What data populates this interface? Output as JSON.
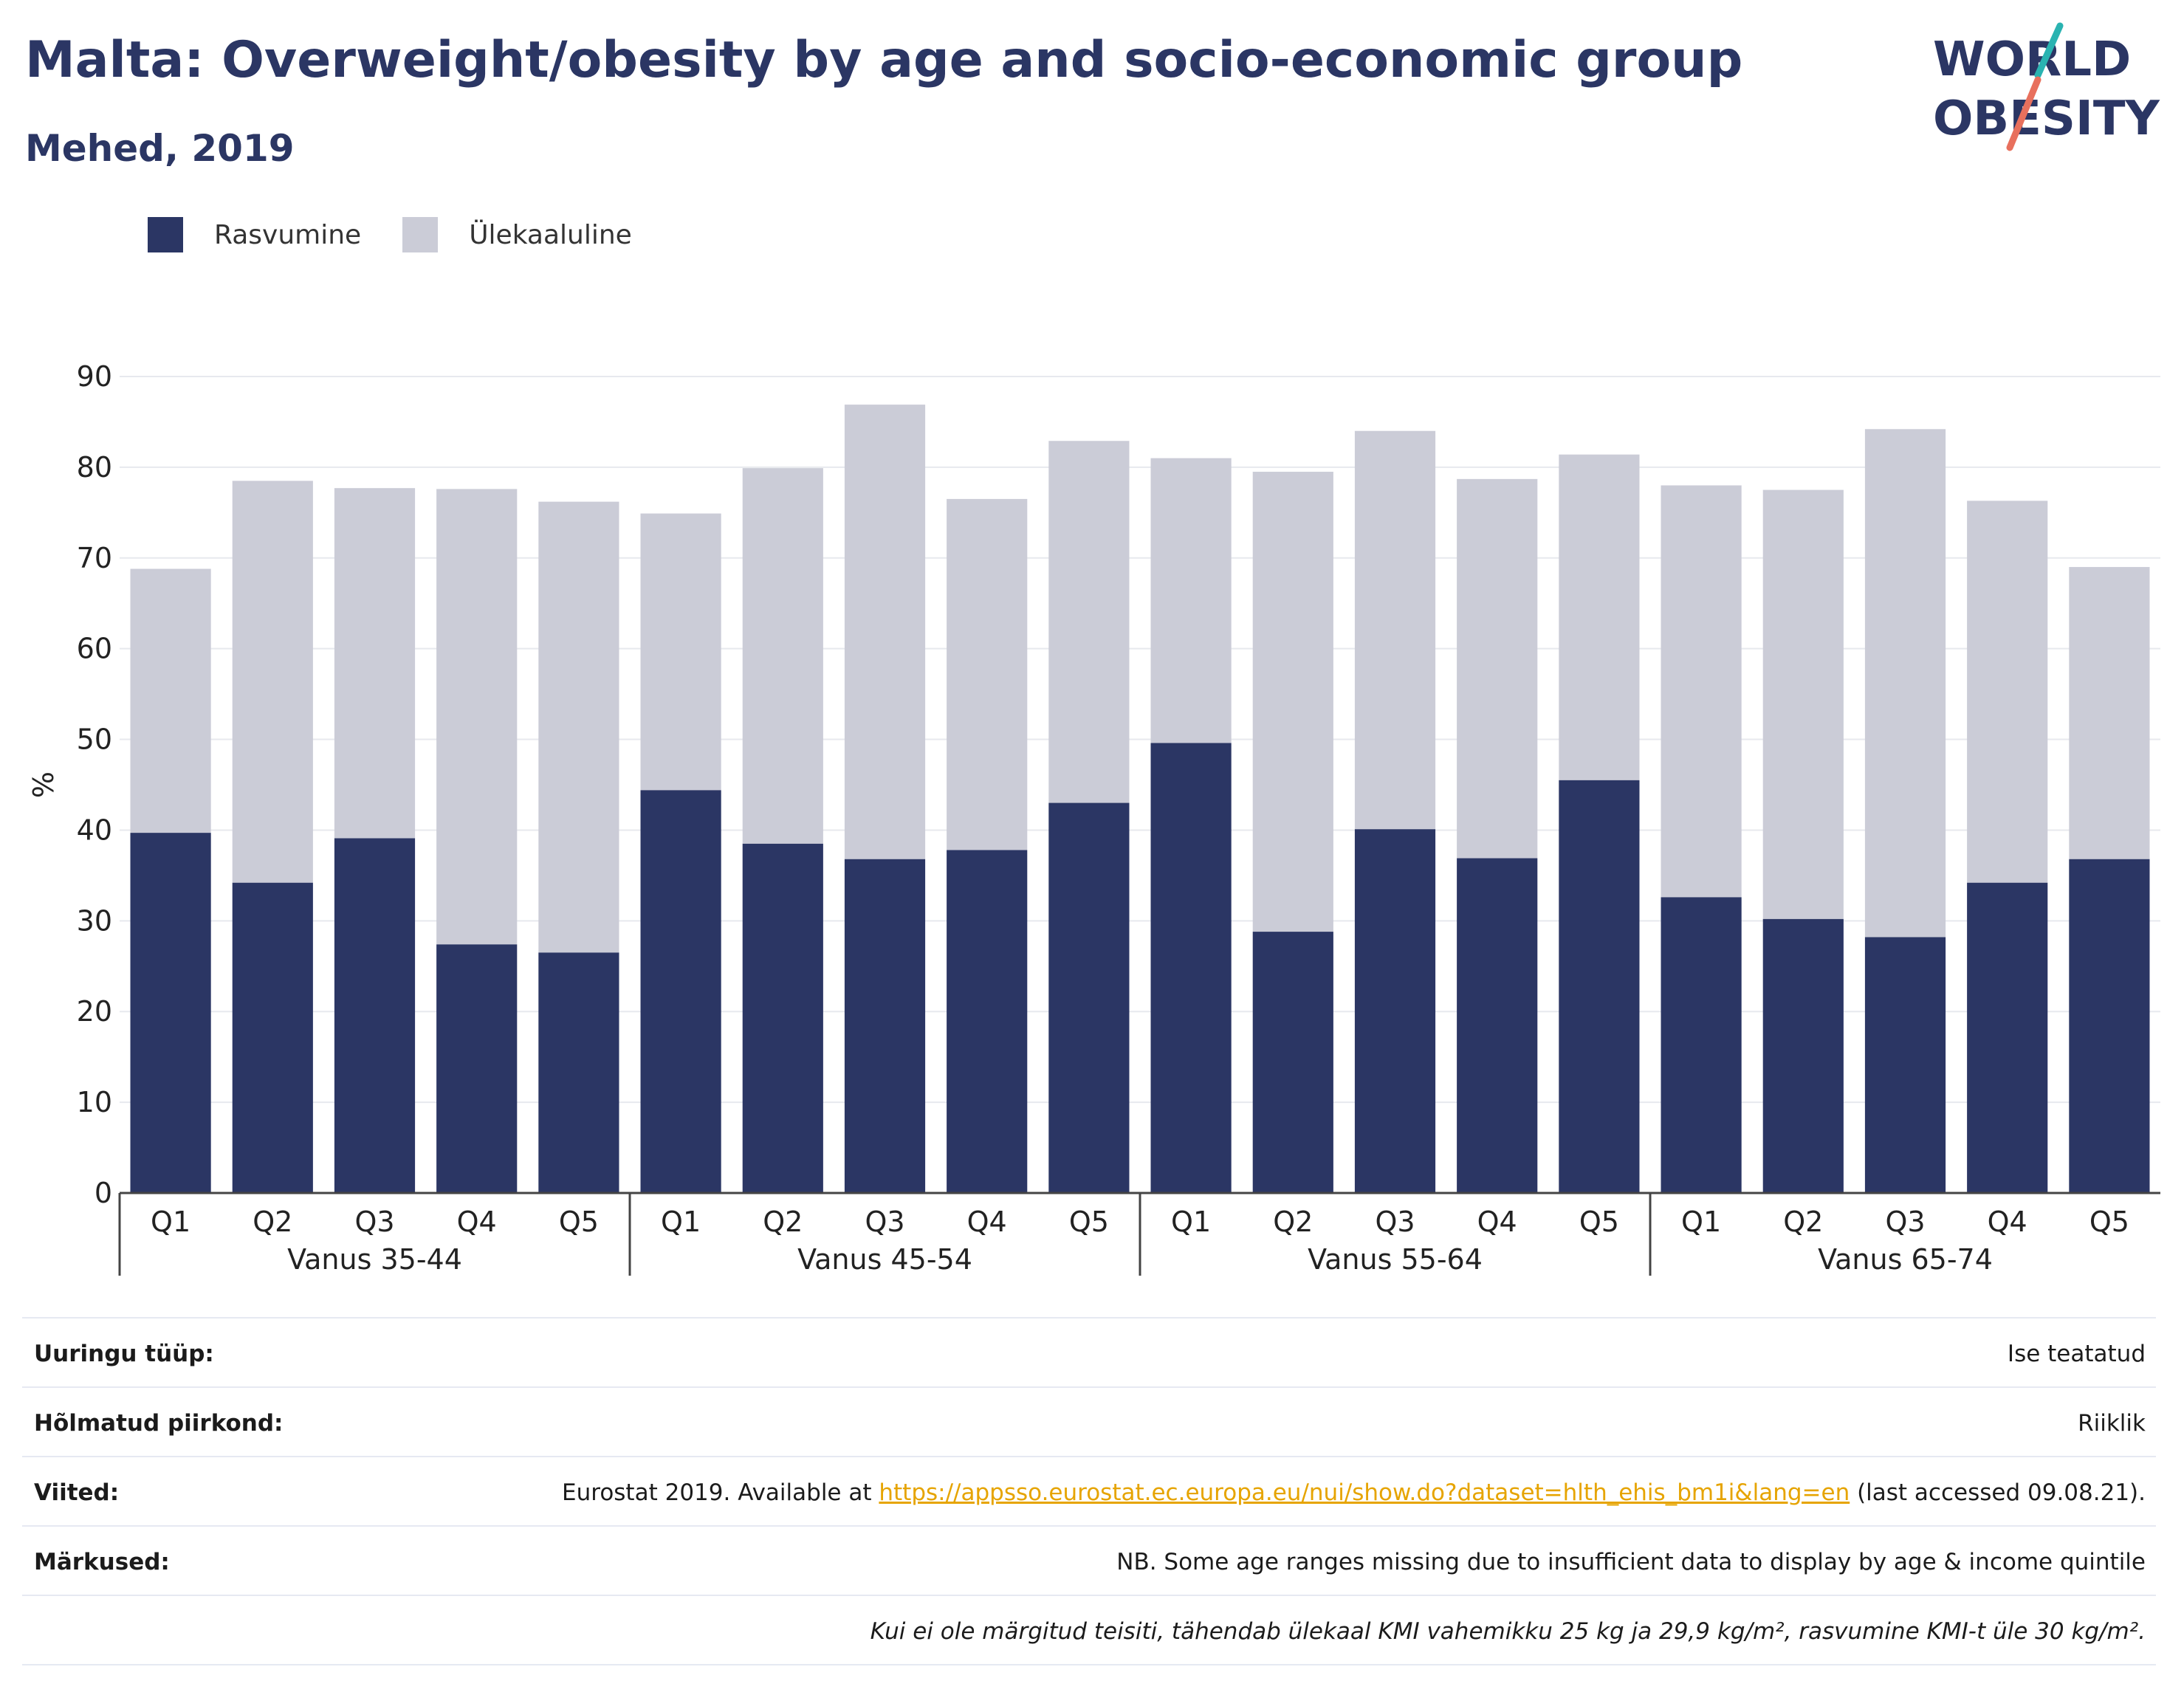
{
  "header": {
    "title": "Malta: Overweight/obesity by age and socio-economic group",
    "subtitle": "Mehed, 2019"
  },
  "logo": {
    "line1": "WORLD",
    "line2": "OBESITY"
  },
  "colors": {
    "obesity": "#2b3664",
    "overweight": "#cbccd7",
    "grid": "#e7e9ee",
    "axis": "#444444",
    "accent_teal": "#2ab3b1",
    "accent_coral": "#e8705d"
  },
  "legend": [
    {
      "label": "Rasvumine",
      "color": "#2b3664"
    },
    {
      "label": "Ülekaaluline",
      "color": "#cbccd7"
    }
  ],
  "chart_data": {
    "type": "bar",
    "stacked": true,
    "ylabel": "%",
    "ylim": [
      0,
      90
    ],
    "yticks": [
      0,
      10,
      20,
      30,
      40,
      50,
      60,
      70,
      80,
      90
    ],
    "grid": true,
    "legend_position": "top-left",
    "groups": [
      {
        "label": "Vanus 35-44",
        "categories": [
          "Q1",
          "Q2",
          "Q3",
          "Q4",
          "Q5"
        ]
      },
      {
        "label": "Vanus 45-54",
        "categories": [
          "Q1",
          "Q2",
          "Q3",
          "Q4",
          "Q5"
        ]
      },
      {
        "label": "Vanus 55-64",
        "categories": [
          "Q1",
          "Q2",
          "Q3",
          "Q4",
          "Q5"
        ]
      },
      {
        "label": "Vanus 65-74",
        "categories": [
          "Q1",
          "Q2",
          "Q3",
          "Q4",
          "Q5"
        ]
      }
    ],
    "series": [
      {
        "name": "Rasvumine",
        "values": [
          39.7,
          34.2,
          39.1,
          27.4,
          26.5,
          44.4,
          38.5,
          36.8,
          37.8,
          43.0,
          49.6,
          28.8,
          40.1,
          36.9,
          45.5,
          32.6,
          30.2,
          28.2,
          34.2,
          36.8
        ]
      },
      {
        "name": "Ülekaaluline",
        "values": [
          29.1,
          44.3,
          38.6,
          50.2,
          49.7,
          30.5,
          41.4,
          50.1,
          38.7,
          39.9,
          31.4,
          50.7,
          43.9,
          41.8,
          35.9,
          45.4,
          47.3,
          56.0,
          42.1,
          32.2
        ]
      }
    ]
  },
  "info": {
    "rows": [
      {
        "label": "Uuringu tüüp:",
        "value": "Ise teatatud"
      },
      {
        "label": "Hõlmatud piirkond:",
        "value": "Riiklik"
      },
      {
        "label": "Viited:",
        "value_before": "Eurostat 2019. Available at ",
        "link": "https://appsso.eurostat.ec.europa.eu/nui/show.do?dataset=hlth_ehis_bm1i&lang=en",
        "value_after": " (last accessed 09.08.21)."
      },
      {
        "label": "Märkused:",
        "value": "NB. Some age ranges missing due to insufficient data to display by age & income quintile"
      }
    ],
    "footnote": "Kui ei ole märgitud teisiti, tähendab ülekaal KMI vahemikku 25 kg ja 29,9 kg/m², rasvumine KMI-t üle 30 kg/m²."
  }
}
